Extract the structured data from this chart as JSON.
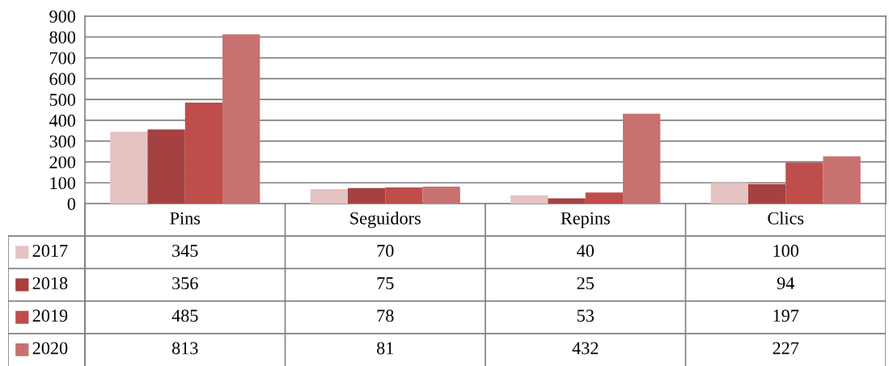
{
  "chart_data": {
    "type": "bar",
    "categories": [
      "Pins",
      "Seguidors",
      "Repins",
      "Clics"
    ],
    "series": [
      {
        "name": "2017",
        "color": "#e6c3c3",
        "values": [
          345,
          70,
          40,
          100
        ]
      },
      {
        "name": "2018",
        "color": "#a54141",
        "values": [
          356,
          75,
          25,
          94
        ]
      },
      {
        "name": "2019",
        "color": "#bf4d4b",
        "values": [
          485,
          78,
          53,
          197
        ]
      },
      {
        "name": "2020",
        "color": "#c87171",
        "values": [
          813,
          81,
          432,
          227
        ]
      }
    ],
    "ylim": [
      0,
      900
    ],
    "yticks": [
      0,
      100,
      200,
      300,
      400,
      500,
      600,
      700,
      800,
      900
    ],
    "grid": "y",
    "legend": "bottom",
    "data_labels": true
  }
}
